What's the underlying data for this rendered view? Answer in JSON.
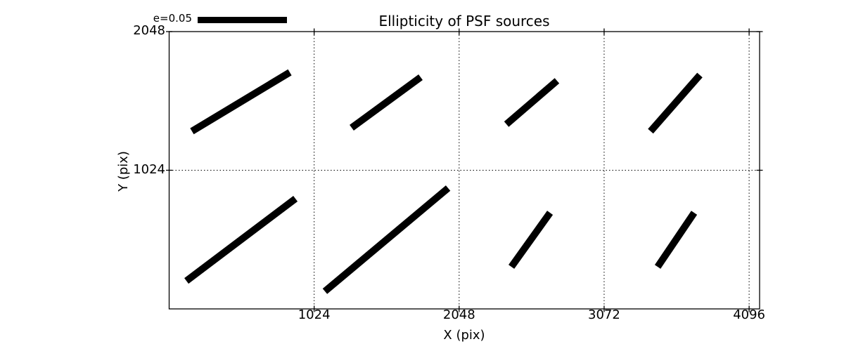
{
  "colors": {
    "foreground": "#000000",
    "background": "#ffffff"
  },
  "chart_data": {
    "type": "line",
    "subtype": "whisker-quiver-plot",
    "title": "Ellipticity of PSF sources",
    "xlabel": "X (pix)",
    "ylabel": "Y (pix)",
    "xlim": [
      0,
      4170
    ],
    "ylim": [
      0,
      2048
    ],
    "x_ticks": [
      1024,
      2048,
      3072,
      4096
    ],
    "x_tick_labels": [
      "1024",
      "2048",
      "3072",
      "4096"
    ],
    "y_ticks": [
      1024,
      2048
    ],
    "y_tick_labels": [
      "1024",
      "2048"
    ],
    "grid": true,
    "grid_style": "dotted",
    "legend": {
      "label": "e=0.05",
      "value": 0.05,
      "position": "top-left-above-axes"
    },
    "whiskers": [
      {
        "x1": 161,
        "y1": 1312,
        "x2": 852,
        "y2": 1747,
        "e": 0.065
      },
      {
        "x1": 1289,
        "y1": 1338,
        "x2": 1776,
        "y2": 1711,
        "e": 0.048
      },
      {
        "x1": 2382,
        "y1": 1364,
        "x2": 2739,
        "y2": 1685,
        "e": 0.038
      },
      {
        "x1": 3400,
        "y1": 1312,
        "x2": 3748,
        "y2": 1727,
        "e": 0.042
      },
      {
        "x1": 122,
        "y1": 207,
        "x2": 892,
        "y2": 814,
        "e": 0.077
      },
      {
        "x1": 1100,
        "y1": 130,
        "x2": 1970,
        "y2": 892,
        "e": 0.091
      },
      {
        "x1": 2417,
        "y1": 311,
        "x2": 2690,
        "y2": 710,
        "e": 0.038
      },
      {
        "x1": 3450,
        "y1": 311,
        "x2": 3708,
        "y2": 710,
        "e": 0.037
      }
    ]
  }
}
